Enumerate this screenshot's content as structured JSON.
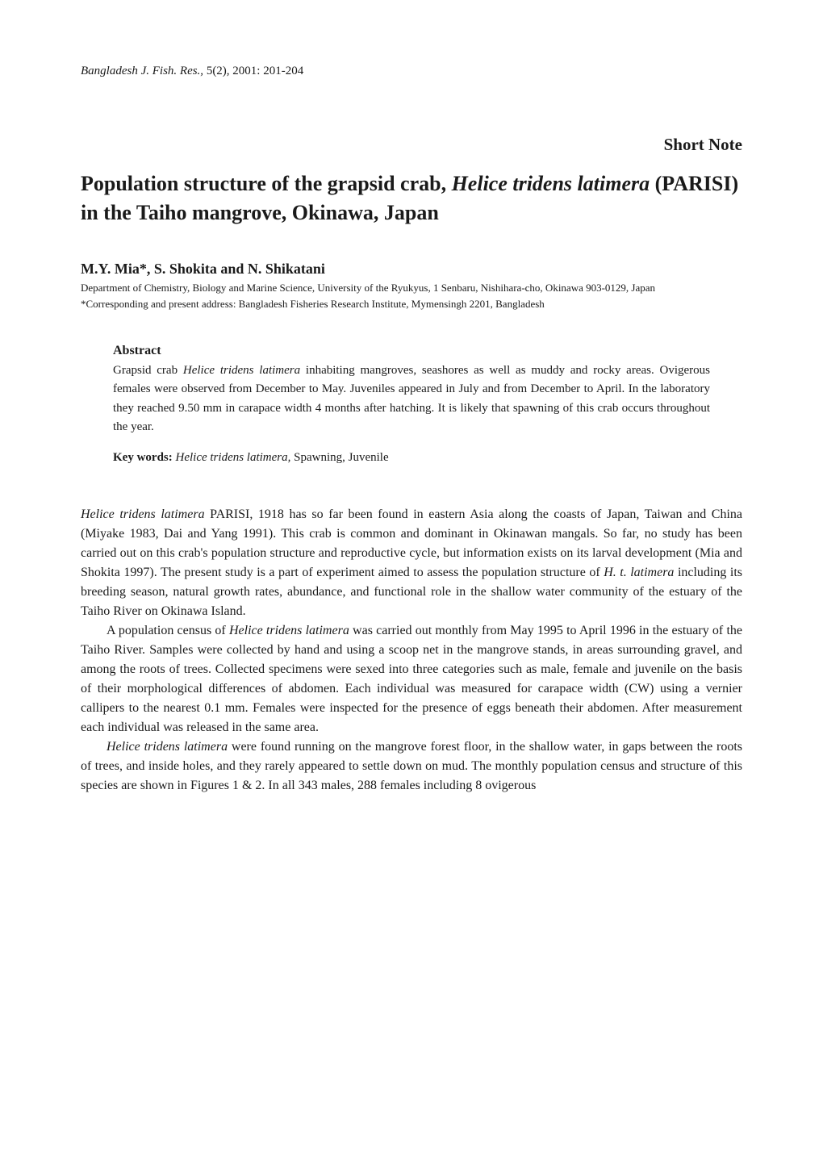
{
  "journal": {
    "name": "Bangladesh J. Fish. Res.,",
    "details": " 5(2), 2001: 201-204"
  },
  "shortNote": "Short Note",
  "title": {
    "pre": "Population structure of the grapsid crab, ",
    "species": "Helice tridens latimera",
    "post": " (PARISI) in the Taiho mangrove, Okinawa, Japan"
  },
  "authors": "M.Y. Mia*, S. Shokita and N. Shikatani",
  "affiliation": "Department of Chemistry, Biology and Marine Science, University of the Ryukyus, 1 Senbaru, Nishihara-cho, Okinawa 903-0129, Japan",
  "correspondence": "*Corresponding and present address: Bangladesh Fisheries Research Institute, Mymensingh 2201, Bangladesh",
  "abstract": {
    "heading": "Abstract",
    "pre": "Grapsid crab ",
    "species": "Helice tridens latimera",
    "post": " inhabiting mangroves, seashores as well as muddy and rocky areas. Ovigerous females were observed from December to May. Juveniles appeared in July and from December to April. In the laboratory they reached 9.50 mm in carapace width 4 months after hatching. It is likely that spawning of this crab occurs throughout the year."
  },
  "keywords": {
    "label": "Key words: ",
    "species": "Helice tridens latimera,",
    "rest": " Spawning, Juvenile"
  },
  "para1": {
    "species1": "Helice tridens latimera",
    "text1": " PARISI, 1918 has so far been found in eastern Asia along the coasts of Japan, Taiwan and China (Miyake 1983, Dai and Yang 1991). This crab is common and dominant in Okinawan mangals. So far, no study has been carried out on this crab's population structure and reproductive cycle, but information exists on its larval development (Mia and Shokita 1997). The present study is a part of experiment aimed to assess the population structure of ",
    "species2": "H. t. latimera",
    "text2": " including its breeding season, natural growth rates, abundance, and functional role in the shallow water community of the estuary of the Taiho River on Okinawa Island."
  },
  "para2": {
    "pre": "A population census of ",
    "species": "Helice tridens latimera",
    "post": " was carried out monthly from May 1995 to April 1996 in the estuary of the Taiho River. Samples were collected by hand and using a scoop net in the mangrove stands, in areas surrounding gravel, and among the roots of trees. Collected specimens were sexed into three categories such as male, female and juvenile on the basis of their morphological differences of abdomen. Each individual was measured for carapace width (CW) using a vernier callipers to the nearest 0.1 mm. Females were inspected for the presence of eggs beneath their abdomen. After measurement each individual was released in the same area."
  },
  "para3": {
    "species": "Helice tridens latimera",
    "post": " were found running on the mangrove forest floor, in the shallow water, in gaps between the roots of trees, and inside holes, and they rarely appeared to settle down on mud. The monthly population census and structure of this species are shown in Figures 1 & 2. In all 343 males, 288 females including 8 ovigerous"
  }
}
